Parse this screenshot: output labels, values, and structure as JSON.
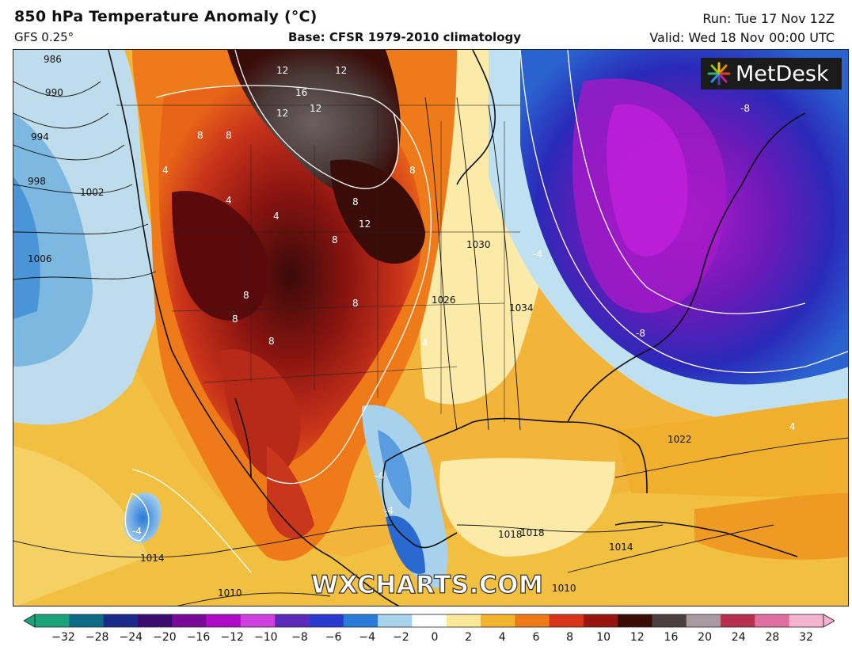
{
  "header": {
    "title": "850 hPa Temperature Anomaly (°C)",
    "model": "GFS 0.25°",
    "base": "Base: CFSR 1979-2010 climatology",
    "run": "Run: Tue 17 Nov 12Z",
    "valid": "Valid: Wed 18 Nov 00:00 UTC"
  },
  "logo": {
    "text": "MetDesk",
    "icon": "starburst-icon"
  },
  "watermark": "WXCHARTS.COM",
  "colorbar": {
    "ticks": [
      "−32",
      "−28",
      "−24",
      "−20",
      "−16",
      "−12",
      "−10",
      "−8",
      "−6",
      "−4",
      "−2",
      "0",
      "2",
      "4",
      "6",
      "8",
      "10",
      "12",
      "16",
      "20",
      "24",
      "28",
      "32"
    ],
    "colors": [
      "#1aa37a",
      "#0d6b86",
      "#1b2a8a",
      "#3b0a6e",
      "#7a0a9a",
      "#b00ac8",
      "#d040e0",
      "#5a2ab8",
      "#2a3ad0",
      "#2a7ad8",
      "#a8d2ec",
      "#ffffff",
      "#fbe89a",
      "#f5b430",
      "#ef7a18",
      "#d8341a",
      "#9a1410",
      "#3a0c08",
      "#4a4040",
      "#a89aa0",
      "#b83050",
      "#e070a0",
      "#f4b4d0"
    ]
  },
  "map_labels": {
    "isobars": [
      "986",
      "990",
      "994",
      "998",
      "1002",
      "1006",
      "1010",
      "1014",
      "1018",
      "1022",
      "1026",
      "1030",
      "1034",
      "1014",
      "1018",
      "1010"
    ],
    "anomaly_values": [
      "12",
      "12",
      "16",
      "12",
      "12",
      "8",
      "8",
      "8",
      "8",
      "4",
      "4",
      "4",
      "8",
      "8",
      "8",
      "12",
      "8",
      "8",
      "-4",
      "-8",
      "-8",
      "-4",
      "4",
      "4",
      "-4",
      "-4"
    ]
  }
}
